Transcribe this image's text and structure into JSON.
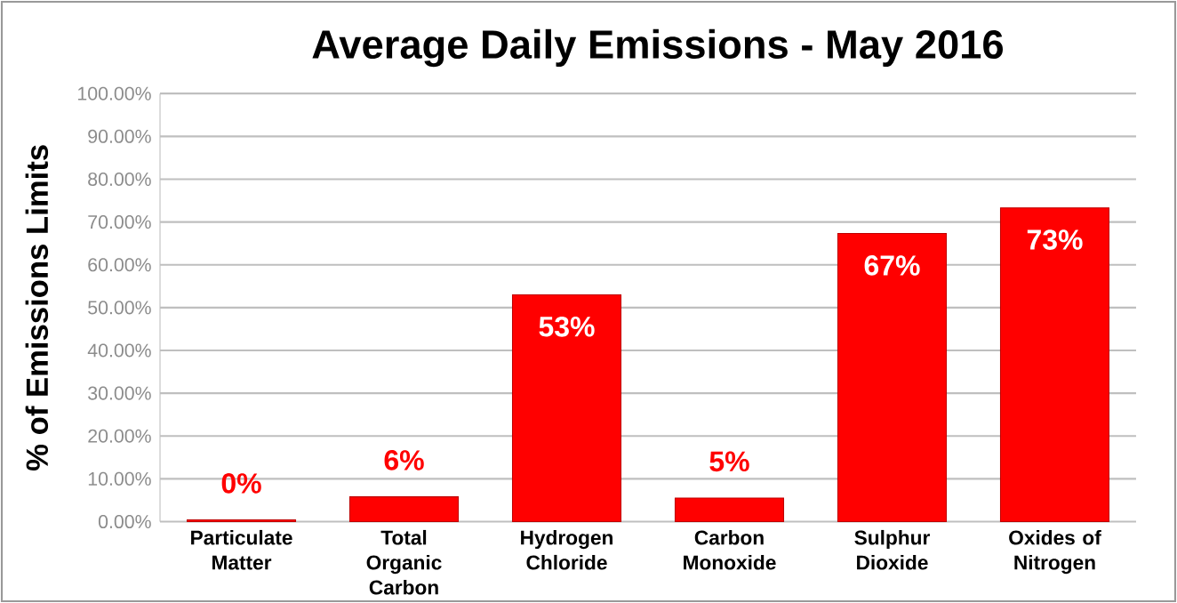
{
  "chart_data": {
    "type": "bar",
    "title": "Average Daily Emissions - May 2016",
    "ylabel": "% of Emissions Limits",
    "categories": [
      "Particulate Matter",
      "Total Organic Carbon",
      "Hydrogen Chloride",
      "Carbon Monoxide",
      "Sulphur Dioxide",
      "Oxides of Nitrogen"
    ],
    "values": [
      0.4,
      5.8,
      53,
      5.5,
      67.3,
      73.3
    ],
    "value_labels": [
      "0%",
      "6%",
      "53%",
      "5%",
      "67%",
      "73%"
    ],
    "color": "#ff0000",
    "ylim": [
      0,
      100
    ],
    "yticks": [
      {
        "value": 0,
        "label": "0.00%"
      },
      {
        "value": 10,
        "label": "10.00%"
      },
      {
        "value": 20,
        "label": "20.00%"
      },
      {
        "value": 30,
        "label": "30.00%"
      },
      {
        "value": 40,
        "label": "40.00%"
      },
      {
        "value": 50,
        "label": "50.00%"
      },
      {
        "value": 60,
        "label": "60.00%"
      },
      {
        "value": 70,
        "label": "70.00%"
      },
      {
        "value": 80,
        "label": "80.00%"
      },
      {
        "value": 90,
        "label": "90.00%"
      },
      {
        "value": 100,
        "label": "100.00%"
      }
    ],
    "grid": "y"
  }
}
